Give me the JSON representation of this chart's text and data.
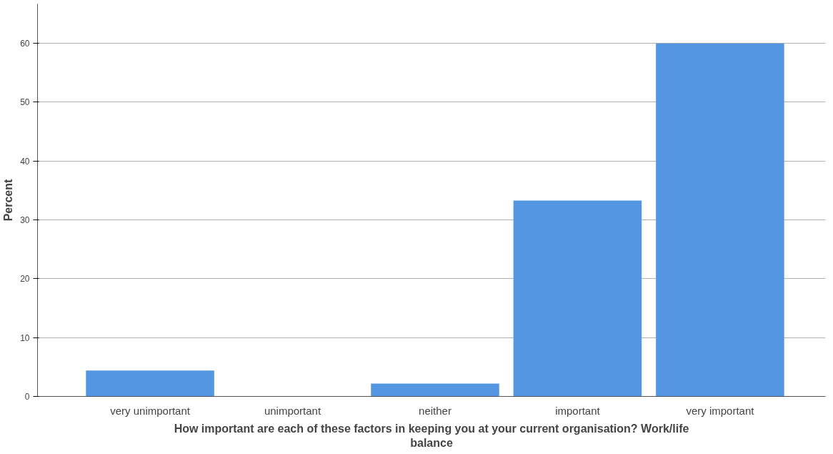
{
  "chart_data": {
    "type": "bar",
    "xlabel": "How important are each of these factors in keeping you at your current organisation? Work/life balance",
    "ylabel": "Percent",
    "categories": [
      "very unimportant",
      "unimportant",
      "neither",
      "important",
      "very important"
    ],
    "values": [
      4.4,
      0,
      2.2,
      33.3,
      60
    ],
    "color": "#5596e3",
    "ylim": [
      0,
      66.7
    ],
    "yticks": [
      0,
      10,
      20,
      30,
      40,
      50,
      60
    ],
    "grid": "y"
  }
}
